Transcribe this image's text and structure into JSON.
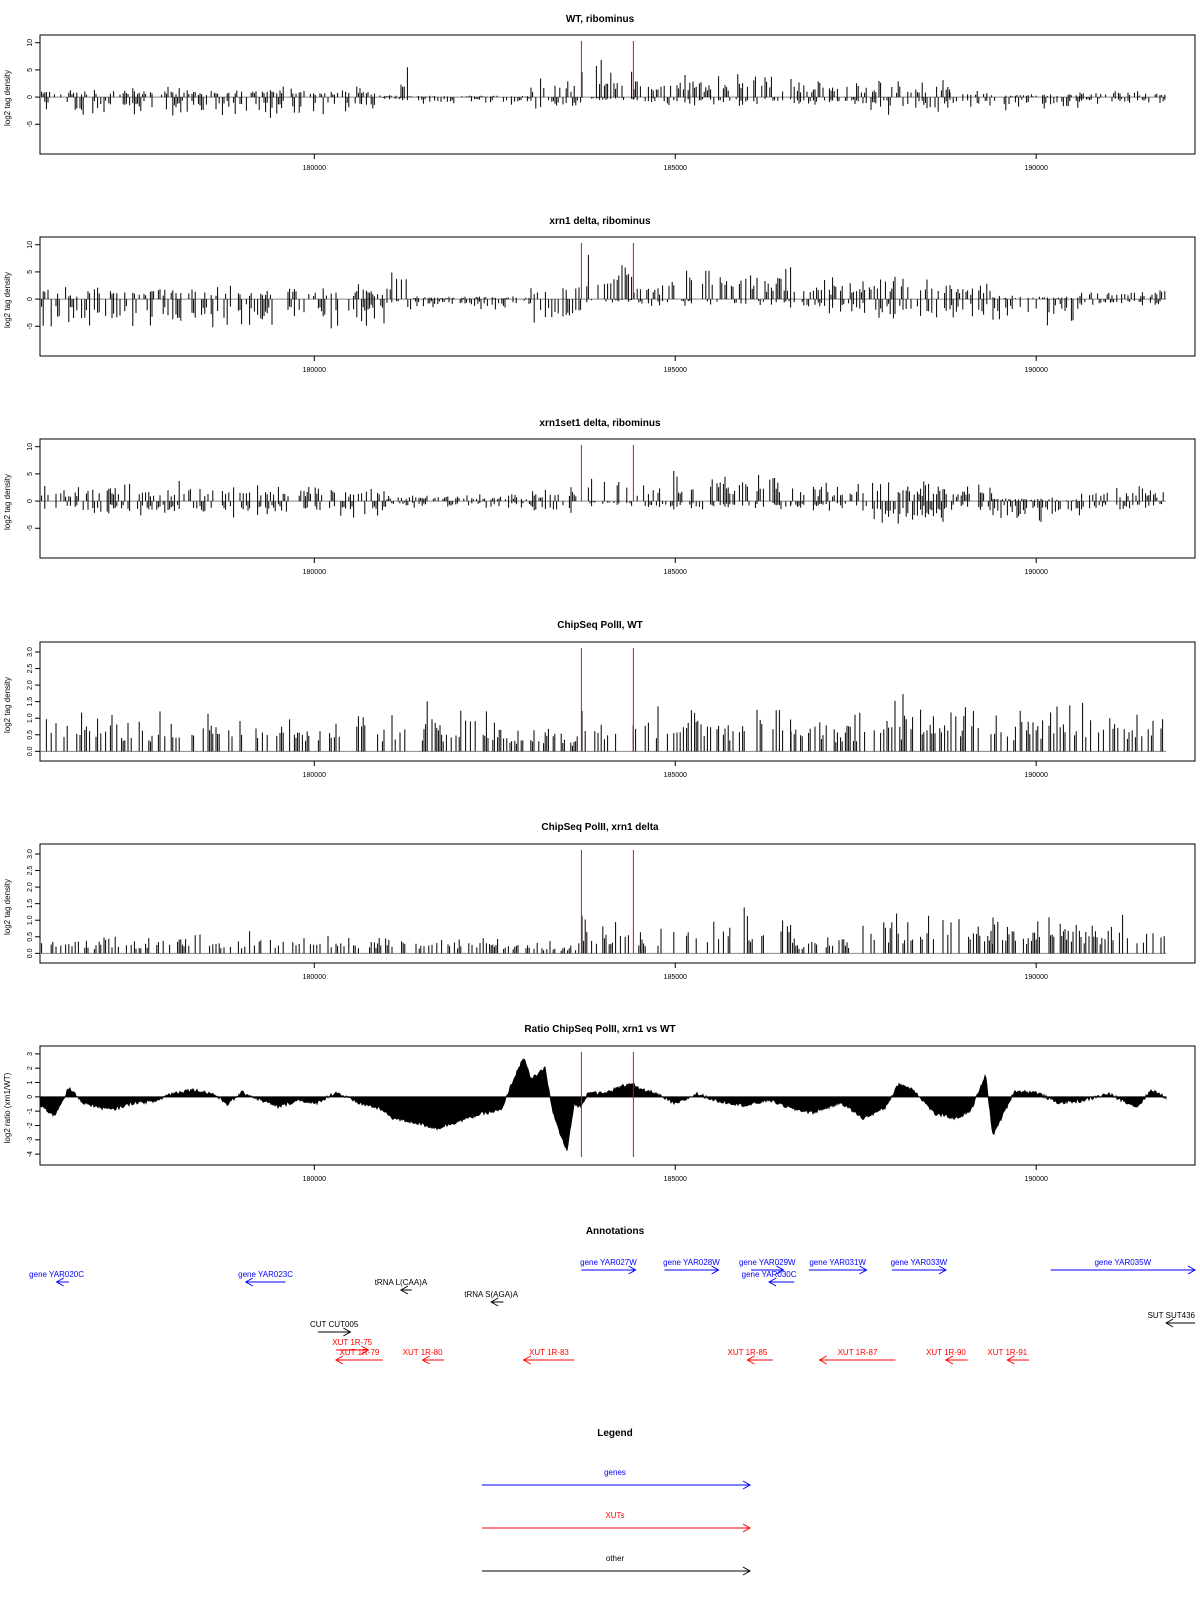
{
  "colors": {
    "axis": "#000000",
    "bars": "#000000",
    "marker": "#ff0000",
    "gene": "#0000ff",
    "xut": "#ff0000",
    "other": "#000000"
  },
  "xaxis": {
    "range": [
      176200,
      192200
    ],
    "ticks": [
      180000,
      185000,
      190000
    ],
    "tick_labels": [
      "180000",
      "185000",
      "190000"
    ]
  },
  "markers": [
    183700,
    184420
  ],
  "chart_data": [
    {
      "type": "bar",
      "title": "WT, ribominus",
      "ylabel": "log2 tag density",
      "ylim": [
        -9,
        10.5
      ],
      "yticks": [
        -5,
        0,
        5,
        10
      ],
      "ytick_labels": [
        "-5",
        "0",
        "5",
        "10"
      ],
      "grid": false,
      "segments": [
        {
          "x0": 176200,
          "x1": 180900,
          "up": 1.3,
          "down": 2.6
        },
        {
          "x0": 180900,
          "x1": 181200,
          "up": 0.4,
          "down": 0.4
        },
        {
          "x0": 181200,
          "x1": 181300,
          "up": 6.5,
          "down": 0.5
        },
        {
          "x0": 181300,
          "x1": 183000,
          "up": 0.2,
          "down": 1.2
        },
        {
          "x0": 183000,
          "x1": 183700,
          "up": 3.0,
          "down": 1.5
        },
        {
          "x0": 183700,
          "x1": 184420,
          "up": 4.5,
          "down": 0.4
        },
        {
          "x0": 184420,
          "x1": 184800,
          "up": 2.5,
          "down": 1.0
        },
        {
          "x0": 184800,
          "x1": 186600,
          "up": 3.5,
          "down": 1.2
        },
        {
          "x0": 186600,
          "x1": 187600,
          "up": 2.5,
          "down": 1.2
        },
        {
          "x0": 187600,
          "x1": 188800,
          "up": 2.5,
          "down": 2.5
        },
        {
          "x0": 188800,
          "x1": 189400,
          "up": 1.0,
          "down": 1.5
        },
        {
          "x0": 189400,
          "x1": 190600,
          "up": 0.5,
          "down": 2.0
        },
        {
          "x0": 190600,
          "x1": 191800,
          "up": 1.0,
          "down": 1.0
        }
      ]
    },
    {
      "type": "bar",
      "title": "xrn1 delta, ribominus",
      "ylabel": "log2 tag density",
      "ylim": [
        -9,
        10.5
      ],
      "yticks": [
        -5,
        0,
        5,
        10
      ],
      "ytick_labels": [
        "-5",
        "0",
        "5",
        "10"
      ],
      "grid": false,
      "segments": [
        {
          "x0": 176200,
          "x1": 181000,
          "up": 1.8,
          "down": 4.5
        },
        {
          "x0": 181000,
          "x1": 181300,
          "up": 4.0,
          "down": 1.0
        },
        {
          "x0": 181300,
          "x1": 183000,
          "up": 0.4,
          "down": 1.5
        },
        {
          "x0": 183000,
          "x1": 183700,
          "up": 2.5,
          "down": 4.0
        },
        {
          "x0": 183700,
          "x1": 184420,
          "up": 6.0,
          "down": 0.5
        },
        {
          "x0": 184420,
          "x1": 184800,
          "up": 3.0,
          "down": 1.0
        },
        {
          "x0": 184800,
          "x1": 186600,
          "up": 5.0,
          "down": 1.2
        },
        {
          "x0": 186600,
          "x1": 187600,
          "up": 3.0,
          "down": 2.0
        },
        {
          "x0": 187600,
          "x1": 188800,
          "up": 4.0,
          "down": 3.0
        },
        {
          "x0": 188800,
          "x1": 189400,
          "up": 2.5,
          "down": 2.5
        },
        {
          "x0": 189400,
          "x1": 190600,
          "up": 0.5,
          "down": 3.5
        },
        {
          "x0": 190600,
          "x1": 191800,
          "up": 1.5,
          "down": 1.2
        }
      ]
    },
    {
      "type": "bar",
      "title": "xrn1set1 delta, ribominus",
      "ylabel": "log2 tag density",
      "ylim": [
        -9,
        10.5
      ],
      "yticks": [
        -5,
        0,
        5,
        10
      ],
      "ytick_labels": [
        "-5",
        "0",
        "5",
        "10"
      ],
      "grid": false,
      "segments": [
        {
          "x0": 176200,
          "x1": 181000,
          "up": 2.5,
          "down": 2.5
        },
        {
          "x0": 181000,
          "x1": 183000,
          "up": 1.0,
          "down": 1.0
        },
        {
          "x0": 183000,
          "x1": 183700,
          "up": 2.0,
          "down": 2.0
        },
        {
          "x0": 183700,
          "x1": 184420,
          "up": 5.5,
          "down": 0.8
        },
        {
          "x0": 184420,
          "x1": 184800,
          "up": 3.0,
          "down": 1.5
        },
        {
          "x0": 184800,
          "x1": 186600,
          "up": 4.0,
          "down": 1.2
        },
        {
          "x0": 186600,
          "x1": 187600,
          "up": 2.5,
          "down": 1.5
        },
        {
          "x0": 187600,
          "x1": 188800,
          "up": 3.0,
          "down": 3.5
        },
        {
          "x0": 188800,
          "x1": 189400,
          "up": 2.5,
          "down": 2.0
        },
        {
          "x0": 189400,
          "x1": 190600,
          "up": 0.5,
          "down": 3.0
        },
        {
          "x0": 190600,
          "x1": 191800,
          "up": 2.0,
          "down": 1.5
        }
      ]
    },
    {
      "type": "bar",
      "title": "ChipSeq PolII, WT",
      "ylabel": "log2 tag density",
      "ylim": [
        -0.05,
        3.15
      ],
      "yticks": [
        0,
        0.5,
        1,
        1.5,
        2,
        2.5,
        3
      ],
      "ytick_labels": [
        "0.0",
        "0.5",
        "1.0",
        "1.5",
        "2.0",
        "2.5",
        "3.0"
      ],
      "grid": false,
      "segments": [
        {
          "x0": 176200,
          "x1": 182600,
          "up": 1.0,
          "down": 0
        },
        {
          "x0": 182600,
          "x1": 183700,
          "up": 0.6,
          "down": 0
        },
        {
          "x0": 183700,
          "x1": 184420,
          "up": 1.0,
          "down": 0
        },
        {
          "x0": 184420,
          "x1": 184800,
          "up": 1.0,
          "down": 0
        },
        {
          "x0": 184800,
          "x1": 186600,
          "up": 1.2,
          "down": 0
        },
        {
          "x0": 186600,
          "x1": 187600,
          "up": 1.0,
          "down": 0
        },
        {
          "x0": 187600,
          "x1": 189400,
          "up": 1.3,
          "down": 0
        },
        {
          "x0": 189400,
          "x1": 191800,
          "up": 1.2,
          "down": 0
        }
      ]
    },
    {
      "type": "bar",
      "title": "ChipSeq PolII, xrn1 delta",
      "ylabel": "log2 tag density",
      "ylim": [
        -0.05,
        3.15
      ],
      "yticks": [
        0,
        0.5,
        1,
        1.5,
        2,
        2.5,
        3
      ],
      "ytick_labels": [
        "0.0",
        "0.5",
        "1.0",
        "1.5",
        "2.0",
        "2.5",
        "3.0"
      ],
      "grid": false,
      "segments": [
        {
          "x0": 176200,
          "x1": 182600,
          "up": 0.45,
          "down": 0
        },
        {
          "x0": 182600,
          "x1": 183700,
          "up": 0.3,
          "down": 0
        },
        {
          "x0": 183700,
          "x1": 184420,
          "up": 0.9,
          "down": 0
        },
        {
          "x0": 184420,
          "x1": 184800,
          "up": 0.5,
          "down": 0
        },
        {
          "x0": 184800,
          "x1": 186600,
          "up": 1.0,
          "down": 0
        },
        {
          "x0": 186600,
          "x1": 187600,
          "up": 0.4,
          "down": 0
        },
        {
          "x0": 187600,
          "x1": 189400,
          "up": 0.9,
          "down": 0
        },
        {
          "x0": 189400,
          "x1": 191800,
          "up": 0.9,
          "down": 0
        }
      ]
    },
    {
      "type": "area",
      "title": "Ratio ChipSeq PolII, xrn1 vs WT",
      "ylabel": "log2 ratio (xrn1/WT)",
      "ylim": [
        -4.2,
        3.2
      ],
      "yticks": [
        -4,
        -3,
        -2,
        -1,
        0,
        1,
        2,
        3
      ],
      "ytick_labels": [
        "-4",
        "-3",
        "-2",
        "-1",
        "0",
        "1",
        "2",
        "3"
      ],
      "grid": false,
      "x": [
        176200,
        176400,
        176600,
        176800,
        177000,
        177200,
        177500,
        177800,
        178000,
        178300,
        178600,
        178800,
        179000,
        179300,
        179500,
        179800,
        180000,
        180300,
        180600,
        180900,
        181100,
        181400,
        181700,
        182000,
        182300,
        182600,
        182700,
        182900,
        183000,
        183200,
        183300,
        183400,
        183500,
        183600,
        183700,
        183800,
        184000,
        184200,
        184400,
        184500,
        184700,
        185000,
        185300,
        185600,
        186000,
        186300,
        186600,
        186900,
        187300,
        187600,
        187900,
        188100,
        188300,
        188600,
        188900,
        189100,
        189300,
        189400,
        189700,
        190000,
        190300,
        190600,
        191000,
        191400,
        191600,
        191800
      ],
      "y": [
        -0.6,
        -1.3,
        0.6,
        -0.4,
        -0.7,
        -0.9,
        -0.4,
        -0.3,
        0.2,
        0.5,
        0.2,
        -0.5,
        0.3,
        -0.3,
        -0.7,
        -0.2,
        -0.5,
        0.3,
        -0.4,
        -0.8,
        -1.5,
        -1.8,
        -2.2,
        -1.7,
        -1.2,
        -0.9,
        0.5,
        2.8,
        1.2,
        2.0,
        -1.0,
        -2.5,
        -3.8,
        -0.5,
        -0.7,
        0.4,
        0.2,
        0.6,
        1.0,
        0.5,
        0.3,
        -0.5,
        0.2,
        -0.3,
        -0.6,
        -0.2,
        -0.8,
        -1.1,
        -0.4,
        -1.5,
        -0.8,
        0.9,
        0.5,
        -1.2,
        -1.5,
        -0.9,
        1.5,
        -2.7,
        0.4,
        0.3,
        -0.4,
        -0.3,
        0.2,
        -0.7,
        0.5,
        -0.1
      ]
    }
  ],
  "annotations": {
    "title": "Annotations",
    "items": [
      {
        "label": "gene YAR020C",
        "color": "gene",
        "x0": 176430,
        "x1": 176600,
        "dir": "left",
        "row": 0
      },
      {
        "label": "gene YAR023C",
        "color": "gene",
        "x0": 179050,
        "x1": 179600,
        "dir": "left",
        "row": 0
      },
      {
        "label": "tRNA L(CAA)A",
        "color": "other",
        "x0": 181200,
        "x1": 181350,
        "dir": "left",
        "row": 1
      },
      {
        "label": "tRNA S(AGA)A",
        "color": "other",
        "x0": 182450,
        "x1": 182620,
        "dir": "left",
        "row": 2
      },
      {
        "label": "gene YAR027W",
        "color": "gene",
        "x0": 183700,
        "x1": 184450,
        "dir": "right",
        "row": -1
      },
      {
        "label": "gene YAR028W",
        "color": "gene",
        "x0": 184850,
        "x1": 185600,
        "dir": "right",
        "row": -1
      },
      {
        "label": "gene YAR029W",
        "color": "gene",
        "x0": 186050,
        "x1": 186500,
        "dir": "right",
        "row": -1
      },
      {
        "label": "gene YAR030C",
        "color": "gene",
        "x0": 186300,
        "x1": 186650,
        "dir": "left",
        "row": 0
      },
      {
        "label": "gene YAR031W",
        "color": "gene",
        "x0": 186850,
        "x1": 187650,
        "dir": "right",
        "row": -1
      },
      {
        "label": "gene YAR033W",
        "color": "gene",
        "x0": 188000,
        "x1": 188750,
        "dir": "right",
        "row": -1
      },
      {
        "label": "gene YAR035W",
        "color": "gene",
        "x0": 190200,
        "x1": 192200,
        "dir": "right",
        "row": -1
      },
      {
        "label": "CUT CUT005",
        "color": "other",
        "x0": 180050,
        "x1": 180500,
        "dir": "right",
        "row": 3
      },
      {
        "label": "SUT SUT436",
        "color": "other",
        "x0": 191800,
        "x1": 192200,
        "dir": "left",
        "row": 4
      },
      {
        "label": "XUT 1R-75",
        "color": "xut",
        "x0": 180300,
        "x1": 180750,
        "dir": "right",
        "row": 5
      },
      {
        "label": "XUT 1R-79",
        "color": "xut",
        "x0": 180300,
        "x1": 180950,
        "dir": "left",
        "row": 6
      },
      {
        "label": "XUT 1R-80",
        "color": "xut",
        "x0": 181500,
        "x1": 181800,
        "dir": "left",
        "row": 6
      },
      {
        "label": "XUT 1R-83",
        "color": "xut",
        "x0": 182900,
        "x1": 183600,
        "dir": "left",
        "row": 6
      },
      {
        "label": "XUT 1R-85",
        "color": "xut",
        "x0": 186000,
        "x1": 186350,
        "dir": "left",
        "row": 6
      },
      {
        "label": "XUT 1R-87",
        "color": "xut",
        "x0": 187000,
        "x1": 188050,
        "dir": "left",
        "row": 6
      },
      {
        "label": "XUT 1R-90",
        "color": "xut",
        "x0": 188750,
        "x1": 189050,
        "dir": "left",
        "row": 6
      },
      {
        "label": "XUT 1R-91",
        "color": "xut",
        "x0": 189600,
        "x1": 189900,
        "dir": "left",
        "row": 6
      }
    ]
  },
  "legend": {
    "title": "Legend",
    "items": [
      {
        "label": "genes",
        "color": "gene"
      },
      {
        "label": "XUTs",
        "color": "xut"
      },
      {
        "label": "other",
        "color": "other"
      }
    ]
  }
}
